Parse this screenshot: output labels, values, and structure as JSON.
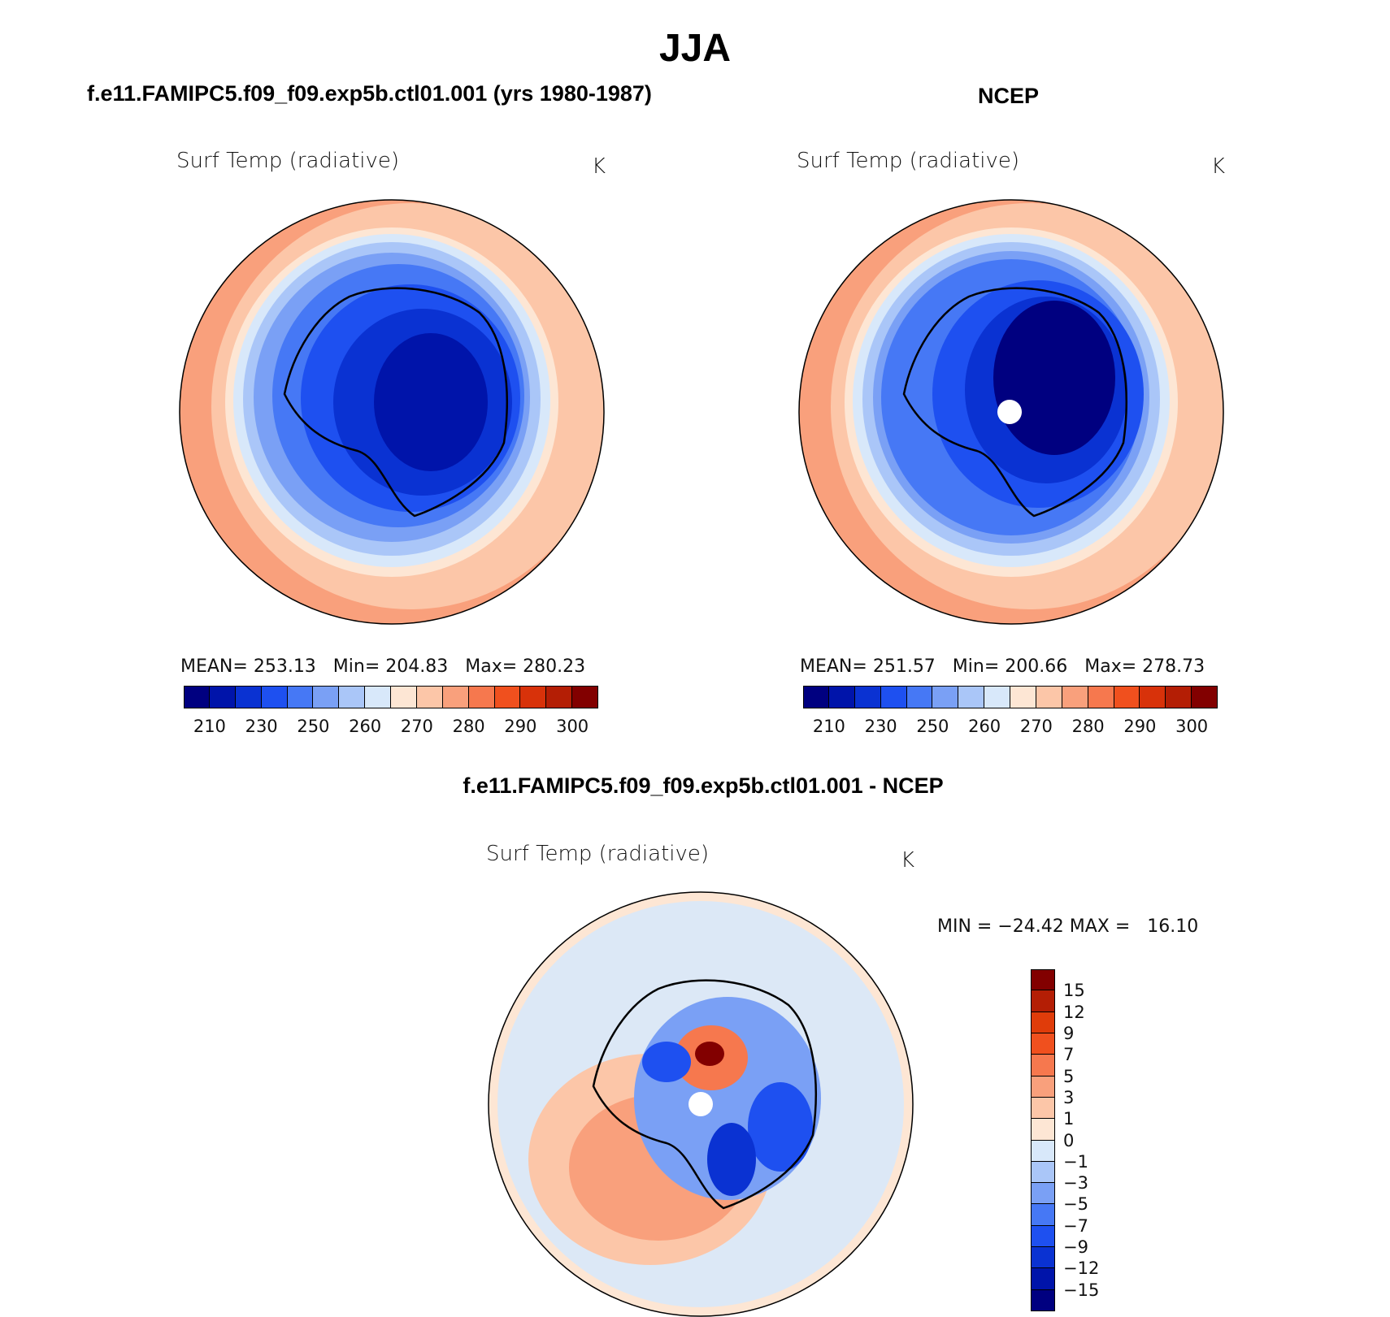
{
  "figure": {
    "season": "JJA"
  },
  "panels": {
    "model": {
      "title": "f.e11.FAMIPC5.f09_f09.exp5b.ctl01.001 (yrs 1980-1987)",
      "variable": "Surf Temp (radiative)",
      "units": "K",
      "stats": {
        "mean": "253.13",
        "min": "204.83",
        "max": "280.23"
      },
      "stats_labels": {
        "mean": "MEAN=",
        "min": "Min=",
        "max": "Max="
      }
    },
    "obs": {
      "title": "NCEP",
      "variable": "Surf Temp (radiative)",
      "units": "K",
      "stats": {
        "mean": "251.57",
        "min": "200.66",
        "max": "278.73"
      },
      "stats_labels": {
        "mean": "MEAN=",
        "min": "Min=",
        "max": "Max="
      }
    },
    "diff": {
      "title": "f.e11.FAMIPC5.f09_f09.exp5b.ctl01.001 - NCEP",
      "variable": "Surf Temp (radiative)",
      "units": "K",
      "minmax_text": "MIN = −24.42 MAX =   16.10"
    }
  },
  "colorbars": {
    "absolute": {
      "tick_labels": [
        "210",
        "230",
        "250",
        "260",
        "270",
        "280",
        "290",
        "300"
      ],
      "colors": [
        "#000080",
        "#0014aa",
        "#0a32d2",
        "#1e50f0",
        "#4678f5",
        "#7aa0f5",
        "#aac6f8",
        "#d8e8fa",
        "#fde6d4",
        "#fcc6a8",
        "#f9a07c",
        "#f6784e",
        "#f0501e",
        "#d8320a",
        "#b41e05",
        "#820000"
      ]
    },
    "difference": {
      "tick_labels": [
        "15",
        "12",
        "9",
        "7",
        "5",
        "3",
        "1",
        "0",
        "−1",
        "−3",
        "−5",
        "−7",
        "−9",
        "−12",
        "−15"
      ],
      "colors": [
        "#820000",
        "#b41e05",
        "#e03c0a",
        "#f0501e",
        "#f6784e",
        "#f9a07c",
        "#fcc6a8",
        "#fde6d4",
        "#d8e8fa",
        "#aac6f8",
        "#7aa0f5",
        "#4678f5",
        "#1e50f0",
        "#0a32d2",
        "#0014aa",
        "#000080"
      ]
    }
  },
  "palette": {
    "ocean_warm": "#fcc6a8",
    "ocean_warmer": "#f9a07c",
    "cold_core": "#000080"
  }
}
